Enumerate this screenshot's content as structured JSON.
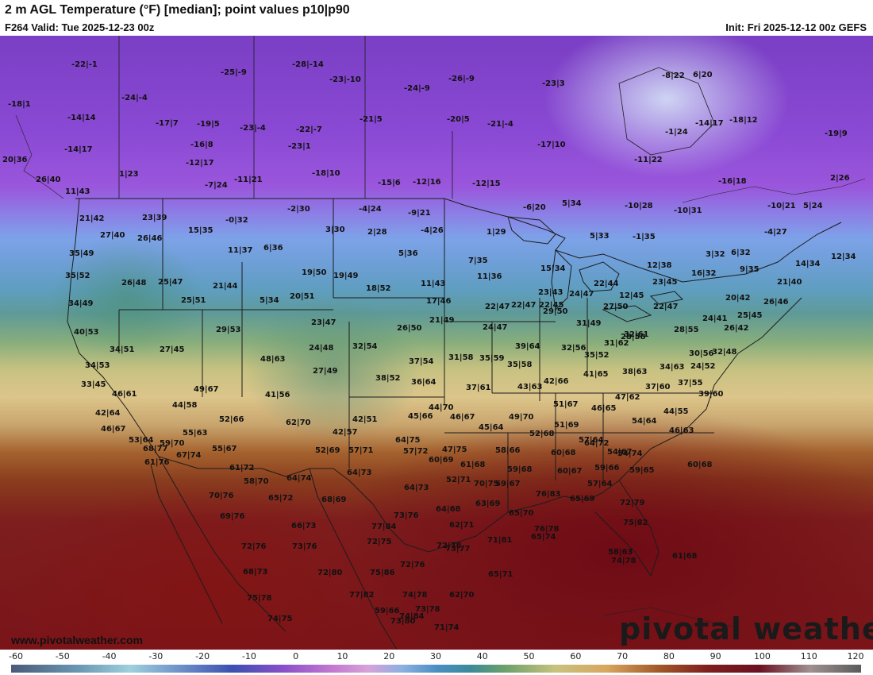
{
  "header": {
    "title": "2 m AGL Temperature (°F) [median]; point values p10|p90",
    "valid": "F264 Valid: Tue 2025-12-23 00z",
    "init": "Init: Fri 2025-12-12 00z GEFS"
  },
  "watermark": "pivotal weather",
  "site_url": "www.pivotalweather.com",
  "colorbar": {
    "ticks": [
      "-60",
      "-50",
      "-40",
      "-30",
      "-20",
      "-10",
      "0",
      "10",
      "20",
      "30",
      "40",
      "50",
      "60",
      "70",
      "80",
      "90",
      "100",
      "110",
      "120"
    ]
  },
  "point_values": [
    "-22|-1",
    "-28|-14",
    "-25|-9",
    "-23|-10",
    "-18|1",
    "-24|-4",
    "-14|14",
    "-17|7",
    "-19|5",
    "-23|-4",
    "-22|-7",
    "-21|5",
    "-24|-9",
    "-26|-9",
    "-20|5",
    "-21|-4",
    "-23|3",
    "-8|22",
    "6|20",
    "-14|17",
    "-18|12",
    "-19|9",
    "-1|24",
    "-14|17",
    "-16|8",
    "-23|1",
    "-17|10",
    "-11|22",
    "-12|17",
    "20|36",
    "1|23",
    "-18|10",
    "-15|6",
    "-12|16",
    "-12|15",
    "-16|18",
    "2|26",
    "26|40",
    "-7|24",
    "-11|21",
    "11|43",
    "-2|30",
    "-4|24",
    "-9|21",
    "-6|20",
    "5|34",
    "-10|28",
    "-10|31",
    "-10|21",
    "5|24",
    "21|42",
    "23|39",
    "-0|32",
    "3|30",
    "2|28",
    "-4|26",
    "1|29",
    "5|33",
    "-1|35",
    "-4|27",
    "27|40",
    "26|46",
    "15|35",
    "11|37",
    "6|36",
    "5|36",
    "7|35",
    "12|38",
    "3|32",
    "6|32",
    "14|34",
    "12|34",
    "35|49",
    "35|52",
    "26|48",
    "25|47",
    "19|50",
    "19|49",
    "15|34",
    "22|44",
    "23|45",
    "16|32",
    "9|35",
    "21|40",
    "34|49",
    "25|51",
    "21|44",
    "5|34",
    "20|51",
    "18|52",
    "11|43",
    "11|36",
    "23|43",
    "24|47",
    "22|47",
    "20|42",
    "26|46",
    "17|46",
    "22|47",
    "22|45",
    "27|50",
    "12|45",
    "22|47",
    "24|41",
    "25|45",
    "40|53",
    "29|53",
    "23|47",
    "26|50",
    "21|49",
    "24|47",
    "29|50",
    "31|49",
    "28|58",
    "28|55",
    "26|42",
    "34|51",
    "27|45",
    "24|48",
    "32|54",
    "32|56",
    "31|62",
    "32|61",
    "30|56",
    "32|48",
    "34|53",
    "48|63",
    "27|49",
    "37|54",
    "31|58",
    "35|59",
    "35|58",
    "39|64",
    "35|52",
    "34|63",
    "24|52",
    "33|45",
    "46|61",
    "49|67",
    "41|56",
    "38|52",
    "36|64",
    "37|61",
    "43|63",
    "42|66",
    "41|65",
    "38|63",
    "37|60",
    "37|55",
    "39|60",
    "44|58",
    "52|66",
    "42|51",
    "45|66",
    "44|70",
    "46|67",
    "51|67",
    "46|65",
    "47|62",
    "44|55",
    "42|64",
    "46|67",
    "55|63",
    "62|70",
    "42|57",
    "45|64",
    "49|70",
    "51|69",
    "54|64",
    "46|63",
    "53|64",
    "59|70",
    "64|75",
    "47|75",
    "52|68",
    "57|64",
    "54|67",
    "60|68",
    "68|77",
    "67|74",
    "55|67",
    "52|69",
    "57|71",
    "57|72",
    "58|66",
    "60|68",
    "64|72",
    "54|74",
    "61|76",
    "61|72",
    "60|69",
    "61|68",
    "59|68",
    "60|67",
    "59|66",
    "59|65",
    "58|70",
    "64|74",
    "64|73",
    "64|73",
    "52|71",
    "70|75",
    "59|67",
    "57|64",
    "70|76",
    "65|72",
    "68|69",
    "64|68",
    "63|69",
    "65|70",
    "76|83",
    "65|69",
    "72|79",
    "69|76",
    "66|73",
    "77|84",
    "62|71",
    "75|82",
    "72|76",
    "73|76",
    "72|75",
    "73|76",
    "72|78",
    "68|73",
    "72|80",
    "72|76",
    "73|77",
    "71|81",
    "65|74",
    "58|63",
    "77|82",
    "74|78",
    "75|86",
    "74|84",
    "75|78",
    "73|80",
    "62|70",
    "65|71",
    "76|78",
    "74|78",
    "74|75",
    "59|66",
    "73|78",
    "71|74",
    "61|68"
  ]
}
